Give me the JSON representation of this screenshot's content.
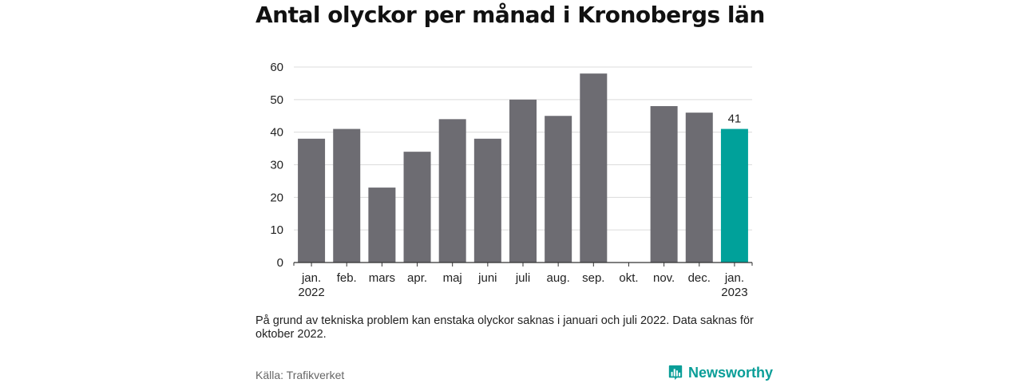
{
  "title": "Antal olyckor per månad i Kronobergs län",
  "note": "På grund av tekniska problem kan enstaka olyckor saknas i januari och juli 2022. Data saknas för oktober 2022.",
  "source": "Källa: Trafikverket",
  "brand": {
    "name": "Newsworthy",
    "color": "#0a9e98"
  },
  "chart_data": {
    "type": "bar",
    "title": "Antal olyckor per månad i Kronobergs län",
    "xlabel": "",
    "ylabel": "",
    "ylim": [
      0,
      60
    ],
    "yticks": [
      0,
      10,
      20,
      30,
      40,
      50,
      60
    ],
    "grid": true,
    "categories": [
      [
        "jan.",
        "2022"
      ],
      [
        "feb."
      ],
      [
        "mars"
      ],
      [
        "apr."
      ],
      [
        "maj"
      ],
      [
        "juni"
      ],
      [
        "juli"
      ],
      [
        "aug."
      ],
      [
        "sep."
      ],
      [
        "okt."
      ],
      [
        "nov."
      ],
      [
        "dec."
      ],
      [
        "jan.",
        "2023"
      ]
    ],
    "values": [
      38,
      41,
      23,
      34,
      44,
      38,
      50,
      45,
      58,
      null,
      48,
      46,
      41
    ],
    "bar_color": "#6d6c72",
    "highlight_index": 12,
    "highlight_color": "#00a19a",
    "data_labels": [
      {
        "index": 12,
        "text": "41"
      }
    ]
  }
}
